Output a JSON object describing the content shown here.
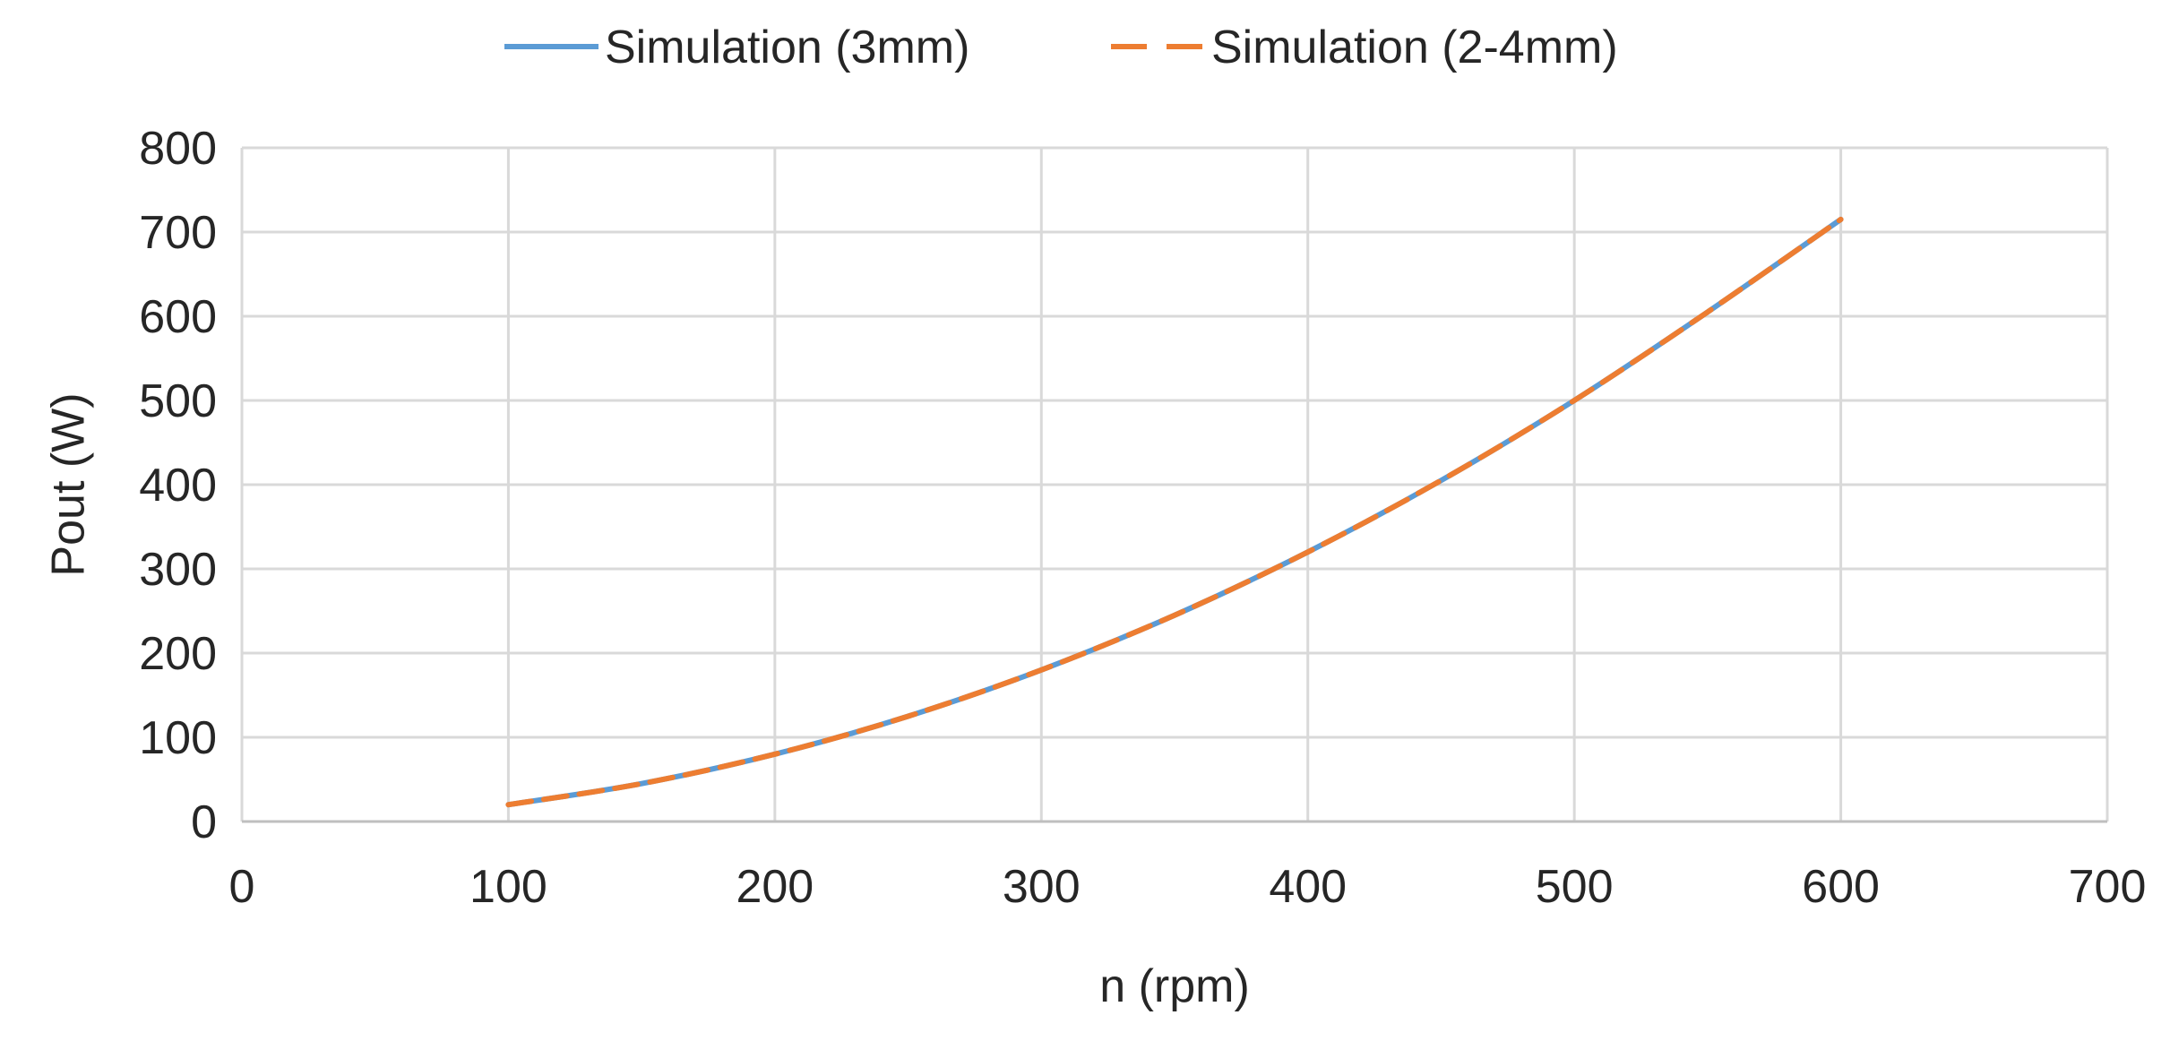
{
  "chart_data": {
    "type": "line",
    "title": "",
    "xlabel": "n (rpm)",
    "ylabel": "Pout (W)",
    "xlim": [
      0,
      700
    ],
    "ylim": [
      0,
      800
    ],
    "xticks": [
      0,
      100,
      200,
      300,
      400,
      500,
      600,
      700
    ],
    "yticks": [
      0,
      100,
      200,
      300,
      400,
      500,
      600,
      700,
      800
    ],
    "grid": true,
    "legend_position": "top-center",
    "series": [
      {
        "name": "Simulation (3mm)",
        "color": "#5B9BD5",
        "style": "solid",
        "x": [
          100,
          150,
          200,
          250,
          300,
          350,
          400,
          450,
          500,
          550,
          600
        ],
        "y": [
          20,
          45,
          80,
          125,
          180,
          245,
          320,
          405,
          500,
          605,
          715
        ]
      },
      {
        "name": "Simulation (2-4mm)",
        "color": "#ED7D31",
        "style": "dashed",
        "x": [
          100,
          150,
          200,
          250,
          300,
          350,
          400,
          450,
          500,
          550,
          600
        ],
        "y": [
          20,
          45,
          80,
          125,
          180,
          245,
          320,
          405,
          500,
          605,
          715
        ]
      }
    ]
  }
}
